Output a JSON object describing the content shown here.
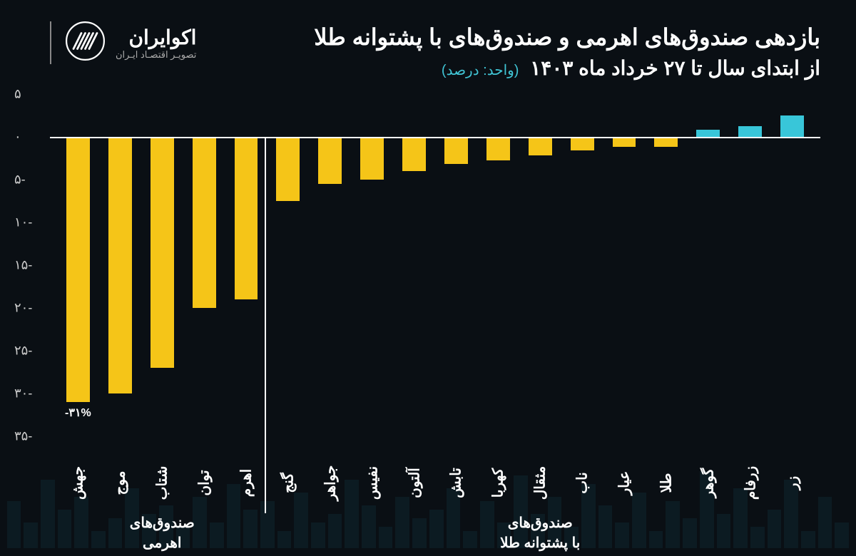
{
  "brand": {
    "name": "اکوایران",
    "tagline": "تصویـر اقتصـاد ایـران"
  },
  "title": "بازدهی صندوق‌های اهرمی و صندوق‌های با پشتوانه طلا",
  "subtitle": "از ابتدای سال تا ۲۷ خرداد ماه ۱۴۰۳",
  "unit": "(واحد: درصد)",
  "chart": {
    "type": "bar",
    "ylim": [
      -35,
      5
    ],
    "ytick_step": 5,
    "yticks": [
      {
        "v": 5,
        "label": "۵"
      },
      {
        "v": 0,
        "label": "۰"
      },
      {
        "v": -5,
        "label": "-۵"
      },
      {
        "v": -10,
        "label": "-۱۰"
      },
      {
        "v": -15,
        "label": "-۱۵"
      },
      {
        "v": -20,
        "label": "-۲۰"
      },
      {
        "v": -25,
        "label": "-۲۵"
      },
      {
        "v": -30,
        "label": "-۳۰"
      },
      {
        "v": -35,
        "label": "-۳۵"
      }
    ],
    "background_color": "#0a0f14",
    "axis_color": "#ffffff",
    "tick_color": "#cccccc",
    "colors": {
      "negative": "#f5c518",
      "positive": "#38c6d9"
    },
    "bars": [
      {
        "label": "جهش",
        "value": -31,
        "annot": "-۳۱%"
      },
      {
        "label": "موج",
        "value": -30
      },
      {
        "label": "شتاب",
        "value": -27
      },
      {
        "label": "توان",
        "value": -20
      },
      {
        "label": "اهرم",
        "value": -19
      },
      {
        "label": "گنج",
        "value": -7.5
      },
      {
        "label": "جواهر",
        "value": -5.5
      },
      {
        "label": "نفیس",
        "value": -5
      },
      {
        "label": "آلتون",
        "value": -4
      },
      {
        "label": "تابش",
        "value": -3.2
      },
      {
        "label": "کهربا",
        "value": -2.8
      },
      {
        "label": "مثقال",
        "value": -2.2
      },
      {
        "label": "ناب",
        "value": -1.6
      },
      {
        "label": "عیار",
        "value": -1.2
      },
      {
        "label": "طلا",
        "value": -1.2
      },
      {
        "label": "گوهر",
        "value": 0.8
      },
      {
        "label": "زرفام",
        "value": 1.2
      },
      {
        "label": "زر",
        "value": 2.5
      }
    ],
    "groups": [
      {
        "label": "صندوق‌های\nاهرمی",
        "from": 0,
        "to": 4
      },
      {
        "label": "صندوق‌های\nبا پشتوانه طلا",
        "from": 5,
        "to": 17
      }
    ],
    "title_fontsize": 32,
    "subtitle_fontsize": 28,
    "label_fontsize": 20,
    "tick_fontsize": 18
  },
  "bg_bars": [
    30,
    60,
    20,
    80,
    45,
    25,
    70,
    40,
    90,
    35,
    55,
    20,
    65,
    30,
    50,
    75,
    25,
    60,
    40,
    85,
    30,
    55,
    20,
    70,
    45,
    35,
    60,
    25,
    50,
    80,
    40,
    30,
    65,
    20,
    55,
    45,
    75,
    30,
    60,
    25,
    50,
    40,
    70,
    35,
    20,
    60,
    45,
    80,
    30,
    55
  ]
}
